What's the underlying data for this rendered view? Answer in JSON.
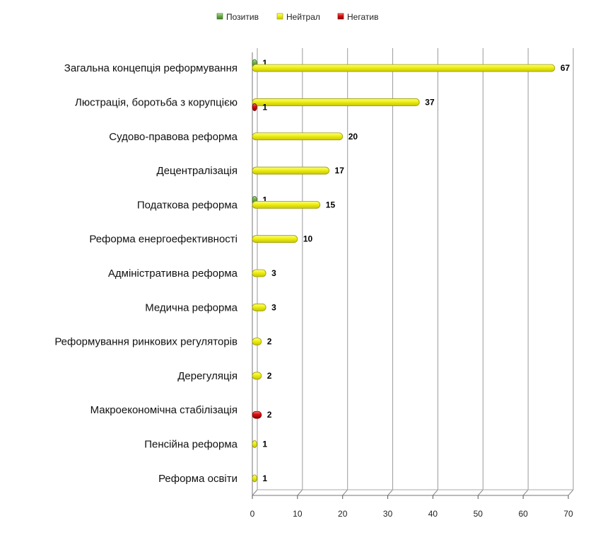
{
  "chart_data": {
    "type": "bar",
    "orientation": "horizontal",
    "categories": [
      "Загальна концепція реформування",
      "Люстрація, боротьба з корупцією",
      "Судово-правова реформа",
      "Децентралізація",
      "Податкова реформа",
      "Реформа енергоефективності",
      "Адміністративна реформа",
      "Медична реформа",
      "Реформування ринкових регуляторів",
      "Дерегуляція",
      "Макроекономічна стабілізація",
      "Пенсійна реформа",
      "Реформа освіти"
    ],
    "series": [
      {
        "name": "Позитив",
        "color": "#6fb24a",
        "values": [
          1,
          0,
          0,
          0,
          1,
          0,
          0,
          0,
          0,
          0,
          0,
          0,
          0
        ]
      },
      {
        "name": "Нейтрал",
        "color": "#f2f20f",
        "values": [
          67,
          37,
          20,
          17,
          15,
          10,
          3,
          3,
          2,
          2,
          0,
          1,
          1
        ]
      },
      {
        "name": "Негатив",
        "color": "#dd1111",
        "values": [
          0,
          1,
          0,
          0,
          0,
          0,
          0,
          0,
          0,
          0,
          2,
          0,
          0
        ]
      }
    ],
    "xlim": [
      0,
      70
    ],
    "xticks": [
      0,
      10,
      20,
      30,
      40,
      50,
      60,
      70
    ],
    "grid": true,
    "legend_position": "top-center"
  }
}
